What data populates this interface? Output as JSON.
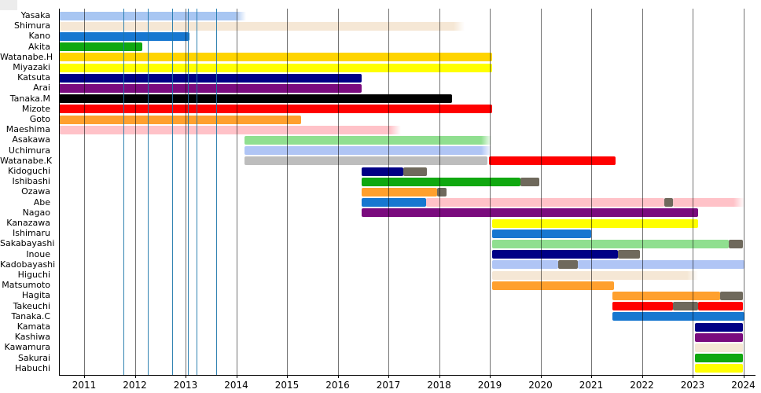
{
  "chart_data": {
    "type": "bar",
    "subtype": "horizontal-timeline-gantt",
    "title": "",
    "xlabel": "",
    "ylabel": "",
    "grid": true,
    "legend": false,
    "x_axis": {
      "range": [
        2010.5,
        2024.2
      ],
      "ticks": [
        2011,
        2012,
        2013,
        2014,
        2015,
        2016,
        2017,
        2018,
        2019,
        2020,
        2021,
        2022,
        2023,
        2024
      ],
      "tick_labels": [
        "2011",
        "2012",
        "2013",
        "2014",
        "2015",
        "2016",
        "2017",
        "2018",
        "2019",
        "2020",
        "2021",
        "2022",
        "2023",
        "2024"
      ]
    },
    "palette": {
      "lightblue": "#A8C6F2",
      "linen": "#F5E7D5",
      "blue": "#1777D0",
      "green": "#10A810",
      "gold": "#FFD400",
      "yellow": "#FFFF00",
      "navy": "#000085",
      "purple": "#7A0B7E",
      "black": "#000000",
      "red": "#FF0000",
      "orange": "#FFA02E",
      "pink": "#FFC2C8",
      "lightgreen": "#90DF90",
      "periwinkle": "#B0C5F5",
      "silver": "#BDBDBD",
      "darkgray": "#6F695C"
    },
    "event_lines": {
      "color": "#1C76AA",
      "years": [
        2011.78,
        2012.26,
        2012.74,
        2013.05,
        2013.22,
        2013.6
      ]
    },
    "rows": [
      {
        "name": "Yasaka",
        "segments": [
          {
            "from": 2010.5,
            "to": 2014.2,
            "color": "lightblue",
            "fade": true
          }
        ]
      },
      {
        "name": "Shimura",
        "segments": [
          {
            "from": 2010.5,
            "to": 2018.5,
            "color": "linen",
            "fade": true
          }
        ]
      },
      {
        "name": "Kano",
        "segments": [
          {
            "from": 2010.5,
            "to": 2013.08,
            "color": "blue"
          }
        ]
      },
      {
        "name": "Akita",
        "segments": [
          {
            "from": 2010.5,
            "to": 2012.15,
            "color": "green"
          }
        ]
      },
      {
        "name": "Watanabe.H",
        "segments": [
          {
            "from": 2010.5,
            "to": 2019.05,
            "color": "gold"
          }
        ]
      },
      {
        "name": "Miyazaki",
        "segments": [
          {
            "from": 2010.5,
            "to": 2019.05,
            "color": "yellow"
          }
        ]
      },
      {
        "name": "Katsuta",
        "segments": [
          {
            "from": 2010.5,
            "to": 2016.47,
            "color": "navy"
          }
        ]
      },
      {
        "name": "Arai",
        "segments": [
          {
            "from": 2010.5,
            "to": 2016.47,
            "color": "purple"
          }
        ]
      },
      {
        "name": "Tanaka.M",
        "segments": [
          {
            "from": 2010.5,
            "to": 2018.26,
            "color": "black"
          }
        ]
      },
      {
        "name": "Mizote",
        "segments": [
          {
            "from": 2010.5,
            "to": 2019.05,
            "color": "red"
          }
        ]
      },
      {
        "name": "Goto",
        "segments": [
          {
            "from": 2010.5,
            "to": 2015.28,
            "color": "orange"
          }
        ]
      },
      {
        "name": "Maeshima",
        "segments": [
          {
            "from": 2010.5,
            "to": 2017.25,
            "color": "pink",
            "fade": true
          }
        ]
      },
      {
        "name": "Asakawa",
        "segments": [
          {
            "from": 2014.17,
            "to": 2019.05,
            "color": "lightgreen",
            "fade": true
          }
        ]
      },
      {
        "name": "Uchimura",
        "segments": [
          {
            "from": 2014.17,
            "to": 2019.05,
            "color": "periwinkle",
            "fade": true
          }
        ]
      },
      {
        "name": "Watanabe.K",
        "segments": [
          {
            "from": 2014.17,
            "to": 2018.95,
            "color": "silver"
          },
          {
            "from": 2018.98,
            "to": 2021.48,
            "color": "red"
          }
        ]
      },
      {
        "name": "Kidoguchi",
        "segments": [
          {
            "from": 2016.47,
            "to": 2017.3,
            "color": "navy"
          },
          {
            "from": 2017.3,
            "to": 2017.76,
            "color": "darkgray"
          }
        ]
      },
      {
        "name": "Ishibashi",
        "segments": [
          {
            "from": 2016.47,
            "to": 2019.6,
            "color": "green"
          },
          {
            "from": 2019.6,
            "to": 2019.98,
            "color": "darkgray"
          }
        ]
      },
      {
        "name": "Ozawa",
        "segments": [
          {
            "from": 2016.47,
            "to": 2017.96,
            "color": "orange"
          },
          {
            "from": 2017.96,
            "to": 2018.15,
            "color": "darkgray"
          }
        ]
      },
      {
        "name": "Abe",
        "segments": [
          {
            "from": 2016.47,
            "to": 2017.74,
            "color": "blue"
          },
          {
            "from": 2017.74,
            "to": 2022.44,
            "color": "pink"
          },
          {
            "from": 2022.44,
            "to": 2022.61,
            "color": "darkgray"
          },
          {
            "from": 2022.61,
            "to": 2024.02,
            "color": "pink",
            "fade": true
          }
        ]
      },
      {
        "name": "Nagao",
        "segments": [
          {
            "from": 2016.47,
            "to": 2023.11,
            "color": "purple"
          }
        ]
      },
      {
        "name": "Kanazawa",
        "segments": [
          {
            "from": 2019.05,
            "to": 2023.11,
            "color": "yellow"
          }
        ]
      },
      {
        "name": "Ishimaru",
        "segments": [
          {
            "from": 2019.05,
            "to": 2021.0,
            "color": "blue"
          }
        ]
      },
      {
        "name": "Sakabayashi",
        "segments": [
          {
            "from": 2019.05,
            "to": 2023.71,
            "color": "lightgreen"
          },
          {
            "from": 2023.71,
            "to": 2024.0,
            "color": "darkgray"
          }
        ]
      },
      {
        "name": "Inoue",
        "segments": [
          {
            "from": 2019.05,
            "to": 2021.53,
            "color": "navy"
          },
          {
            "from": 2021.53,
            "to": 2021.96,
            "color": "darkgray"
          }
        ]
      },
      {
        "name": "Kadobayashi",
        "segments": [
          {
            "from": 2019.05,
            "to": 2020.35,
            "color": "periwinkle"
          },
          {
            "from": 2020.35,
            "to": 2020.74,
            "color": "darkgray"
          },
          {
            "from": 2020.74,
            "to": 2024.03,
            "color": "periwinkle"
          }
        ]
      },
      {
        "name": "Higuchi",
        "segments": [
          {
            "from": 2019.05,
            "to": 2023.11,
            "color": "linen",
            "fade": true
          }
        ]
      },
      {
        "name": "Matsumoto",
        "segments": [
          {
            "from": 2019.05,
            "to": 2021.45,
            "color": "orange"
          }
        ]
      },
      {
        "name": "Hagita",
        "segments": [
          {
            "from": 2021.42,
            "to": 2023.55,
            "color": "orange"
          },
          {
            "from": 2023.55,
            "to": 2024.0,
            "color": "darkgray"
          }
        ]
      },
      {
        "name": "Takeuchi",
        "segments": [
          {
            "from": 2021.42,
            "to": 2022.61,
            "color": "red"
          },
          {
            "from": 2022.61,
            "to": 2023.11,
            "color": "darkgray"
          },
          {
            "from": 2023.11,
            "to": 2024.0,
            "color": "red"
          }
        ]
      },
      {
        "name": "Tanaka.C",
        "segments": [
          {
            "from": 2021.42,
            "to": 2024.03,
            "color": "blue"
          }
        ]
      },
      {
        "name": "Kamata",
        "segments": [
          {
            "from": 2023.05,
            "to": 2024.0,
            "color": "navy"
          }
        ]
      },
      {
        "name": "Kashiwa",
        "segments": [
          {
            "from": 2023.05,
            "to": 2024.0,
            "color": "purple"
          }
        ]
      },
      {
        "name": "Kawamura",
        "segments": [
          {
            "from": 2023.05,
            "to": 2024.0,
            "color": "linen"
          }
        ]
      },
      {
        "name": "Sakurai",
        "segments": [
          {
            "from": 2023.05,
            "to": 2024.0,
            "color": "green"
          }
        ]
      },
      {
        "name": "Habuchi",
        "segments": [
          {
            "from": 2023.05,
            "to": 2024.0,
            "color": "yellow"
          }
        ]
      }
    ]
  }
}
